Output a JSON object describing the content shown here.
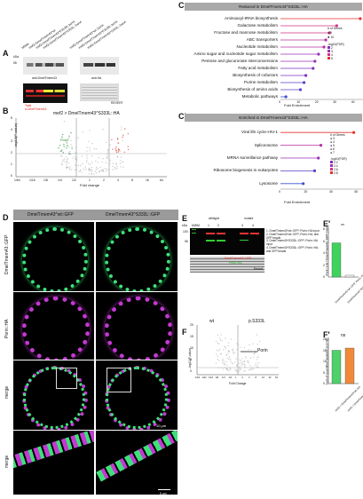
{
  "panels": {
    "A": "A",
    "B": "B",
    "C": "C",
    "C2": "C'",
    "D": "D",
    "E": "E",
    "E2": "E'",
    "F": "F",
    "F2": "F'"
  },
  "A": {
    "kda": "kDa",
    "mw": "55",
    "lanes": [
      "MWM",
      "mef2>DmelTmem43^wt",
      "mef2>DmelTmem43^E313R::3xHA",
      "mef2>DmelTmem43^S333L::3xHA",
      "mef2>DmelTmem43^wt::3xHA",
      "mef2>DmelTmem43^E313R::3xHA",
      "mef2>DmelTmem43^S333L::3xHA"
    ],
    "blot1": "anti-DmelTmem43",
    "blot2": "anti-HA",
    "revert": "REVERT",
    "ratio_top": "Total",
    "ratio_bottom": "α-DmelTmem43"
  },
  "B": {
    "title": "mef2 > DmelTmem43^S333L::HA",
    "ylabel": "-log10(P-value)",
    "xlabel": "Fold change",
    "porin": "Porin",
    "yticks": [
      "5",
      "4",
      "3",
      "2",
      "1",
      "0"
    ],
    "xticks": [
      "1/64",
      "1/16",
      "1/8",
      "1/4",
      "1/2",
      "1",
      "2",
      "4",
      "8",
      "16",
      "64"
    ]
  },
  "C": {
    "header": "Reduced in DmelTmem43^S333L::HA",
    "xlabel": "Fold Enrichment",
    "xticks": [
      "0",
      "10",
      "20",
      "30",
      "40"
    ],
    "legend_genes_title": "# of Genes",
    "legend_genes": [
      "5",
      "10"
    ],
    "legend_fdr_title": "-log10(FDR)",
    "legend_fdr": [
      "2",
      "3",
      "4",
      "5"
    ],
    "chart_data": {
      "type": "lollipop",
      "categories": [
        "Aminoacyl-tRNA biosynthesis",
        "Galactose metabolism",
        "Fructose and mannose metabolism",
        "ABC transporters",
        "Nucleotide metabolism",
        "Amino sugar and nucleotide sugar metabolism",
        "Pentose and glucuronate interconversions",
        "Fatty acid metabolism",
        "Biosynthesis of cofactors",
        "Purine metabolism",
        "Biosynthesis of amino acids",
        "Metabolic pathways"
      ],
      "values": [
        44,
        31,
        27,
        25,
        24,
        21,
        19,
        18,
        14,
        13,
        11,
        3
      ],
      "xlim": [
        0,
        46
      ]
    }
  },
  "C2": {
    "header": "Enriched in DmelTmem43^S333L::HA",
    "xlabel": "Fold Enrichment",
    "xticks": [
      "0",
      "20",
      "40",
      "60"
    ],
    "legend_genes_title": "# of Genes",
    "legend_genes": [
      "3",
      "4",
      "5",
      "6",
      "7"
    ],
    "legend_fdr_title": "-log10(FDR)",
    "legend_fdr": [
      "2.2",
      "2.4",
      "2.6",
      "2.8"
    ],
    "chart_data": {
      "type": "lollipop",
      "categories": [
        "Viral life cycle-HIV-1",
        "Spliceosome",
        "MRNA surveillance pathway",
        "Ribosome biogenesis in eukaryotes",
        "Lysosome"
      ],
      "values": [
        58,
        32,
        30,
        27,
        18
      ],
      "xlim": [
        0,
        66
      ]
    }
  },
  "D": {
    "col1": "DmelTmem43^wt::GFP",
    "col2": "DmelTmem43^S333L::GFP",
    "rows": [
      "DmelTmem43::GFP",
      "Porin::HA",
      "merge",
      "merge"
    ],
    "scale1": "10 μm",
    "scale2": "5 μm"
  },
  "E": {
    "wildtype": "wildtype",
    "mutant": "mutant",
    "kda": "kDa",
    "mwm": "MWM",
    "lanes": [
      "1",
      "2",
      "3",
      "4"
    ],
    "mw": [
      "100",
      "55"
    ],
    "legend": [
      "1. DmelTmem43^wt::GFP; Porin::HA input",
      "2. DmelTmem43^wt::GFP; Porin::HA; anti GFP beads",
      "3. DmelTmem43^S333L::GFP; Porin::HA input",
      "4. DmelTmem43^S333L::GFP; Porin::HA; anti GFP beads"
    ],
    "color_labels": [
      "DmelTmem43::GFP",
      "Porin::HA"
    ],
    "revert": "Revert"
  },
  "E2": {
    "ylabel": "Porin::HA / DmelTmem43::GFP [ratio]",
    "sig": "**",
    "yticks": [
      "0",
      "2",
      "4",
      "6",
      "8"
    ],
    "chart_data": {
      "type": "bar",
      "categories": [
        "DmelTmem43^wt::GFP; Porin::HA",
        "DmelTmem43^S333L::GFP; Porin::HA"
      ],
      "values": [
        5.7,
        0.3
      ],
      "ylim": [
        0,
        8
      ]
    }
  },
  "F": {
    "wt": "wt",
    "mut": "p.S333L",
    "porin": "Porin",
    "ylabel": "-log10(P-value)",
    "xlabel": "Fold Change",
    "yticks": [
      "20",
      "15",
      "10",
      "5",
      "0"
    ],
    "xticks": [
      "1/64",
      "1/32",
      "1/16",
      "1/8",
      "1/4",
      "1/2",
      "1",
      "2",
      "4",
      "8",
      "16",
      "32",
      "64"
    ]
  },
  "F2": {
    "ylabel": "Sum of quantified peptides [x10^8]",
    "sig": "ns",
    "yticks": [
      "0",
      "5",
      "10",
      "15",
      "20"
    ],
    "chart_data": {
      "type": "bar",
      "categories": [
        "mef2 > DmelTmem43^wt::HA",
        "mef2 > DmelTmem43^S333L::HA"
      ],
      "values": [
        15,
        16
      ],
      "ylim": [
        0,
        20
      ]
    }
  }
}
